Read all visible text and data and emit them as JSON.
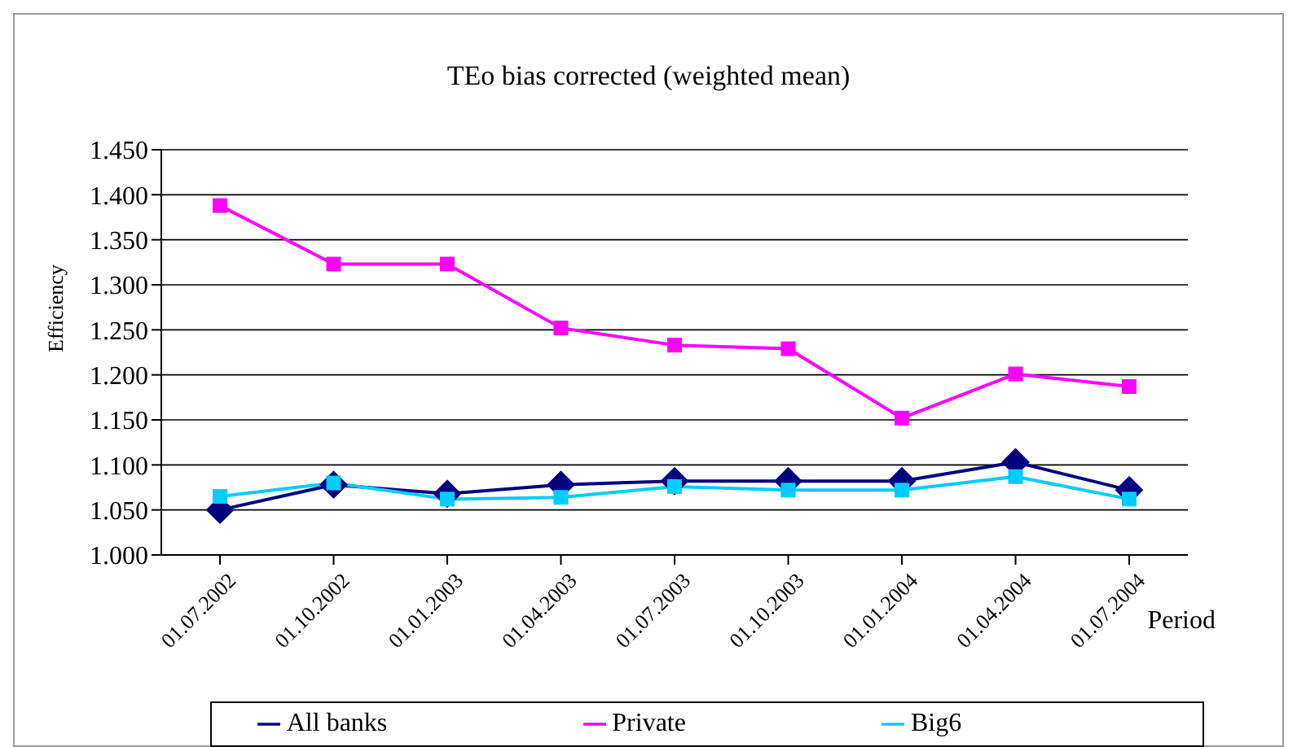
{
  "chart_data": {
    "type": "line",
    "title": "TEo bias corrected (weighted mean)",
    "xlabel": "Period",
    "ylabel": "Efficiency",
    "categories": [
      "01.07.2002",
      "01.10.2002",
      "01.01.2003",
      "01.04.2003",
      "01.07.2003",
      "01.10.2003",
      "01.01.2004",
      "01.04.2004",
      "01.07.2004"
    ],
    "series": [
      {
        "name": "All banks",
        "color": "#000080",
        "marker": "diamond",
        "values": [
          1.05,
          1.078,
          1.068,
          1.078,
          1.082,
          1.082,
          1.082,
          1.103,
          1.072
        ]
      },
      {
        "name": "Private",
        "color": "#ff00ff",
        "marker": "square",
        "values": [
          1.388,
          1.323,
          1.323,
          1.252,
          1.233,
          1.229,
          1.152,
          1.201,
          1.187
        ]
      },
      {
        "name": "Big6",
        "color": "#00ccff",
        "marker": "square",
        "values": [
          1.065,
          1.08,
          1.062,
          1.064,
          1.076,
          1.072,
          1.072,
          1.087,
          1.062
        ]
      }
    ],
    "ylim": [
      1.0,
      1.45
    ],
    "yticks": [
      {
        "value": 1.0,
        "label": "1.000"
      },
      {
        "value": 1.05,
        "label": "1.050"
      },
      {
        "value": 1.1,
        "label": "1.100"
      },
      {
        "value": 1.15,
        "label": "1.150"
      },
      {
        "value": 1.2,
        "label": "1.200"
      },
      {
        "value": 1.25,
        "label": "1.250"
      },
      {
        "value": 1.3,
        "label": "1.300"
      },
      {
        "value": 1.35,
        "label": "1.350"
      },
      {
        "value": 1.4,
        "label": "1.400"
      },
      {
        "value": 1.45,
        "label": "1.450"
      }
    ],
    "grid": "y",
    "legend": "bottom",
    "line_style": "solid"
  }
}
